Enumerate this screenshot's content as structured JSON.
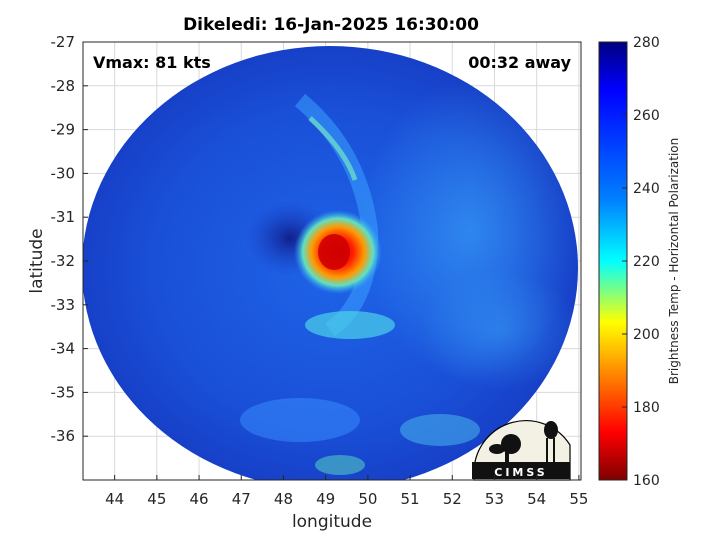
{
  "title": "Dikeledi: 16-Jan-2025 16:30:00",
  "vmax_text": "Vmax: 81 kts",
  "time_text": "00:32 away",
  "logo_text": "CIMSS",
  "map": {
    "xlabel": "longitude",
    "ylabel": "latitude",
    "xlim": [
      43.25,
      55.05
    ],
    "ylim": [
      -37.0,
      -27.0
    ],
    "xticks": [
      "44",
      "45",
      "46",
      "47",
      "48",
      "49",
      "50",
      "51",
      "52",
      "53",
      "54",
      "55"
    ],
    "xtick_values": [
      44,
      45,
      46,
      47,
      48,
      49,
      50,
      51,
      52,
      53,
      54,
      55
    ],
    "yticks": [
      "-27",
      "-28",
      "-29",
      "-30",
      "-31",
      "-32",
      "-33",
      "-34",
      "-35",
      "-36"
    ],
    "ytick_values": [
      -27,
      -28,
      -29,
      -30,
      -31,
      -32,
      -33,
      -34,
      -35,
      -36
    ],
    "grid": true,
    "swath_center": [
      49.2,
      -31.9
    ],
    "eye_center": [
      48.5,
      -31.4
    ],
    "warm_core_center": [
      49.35,
      -32.0
    ]
  },
  "colorbar": {
    "label": "Brightness Temp - Horizontal Polarization",
    "ticks": [
      "280",
      "260",
      "240",
      "220",
      "200",
      "180",
      "160"
    ],
    "tick_values": [
      280,
      260,
      240,
      220,
      200,
      180,
      160
    ],
    "range": [
      160,
      280
    ],
    "colormap": "jet",
    "colors": [
      "#800000",
      "#ff0000",
      "#ff8000",
      "#ffff00",
      "#80ff80",
      "#00ffff",
      "#0080ff",
      "#0000ff",
      "#000080"
    ]
  }
}
